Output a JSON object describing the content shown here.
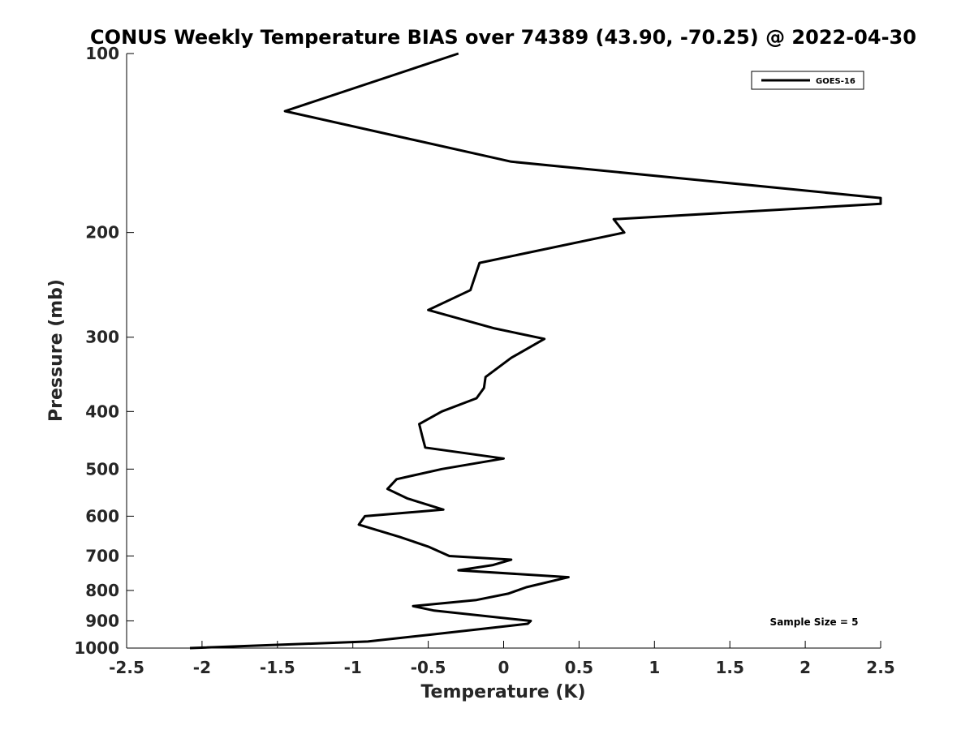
{
  "chart_data": {
    "type": "line",
    "title": "CONUS Weekly Temperature BIAS over 74389 (43.90, -70.25) @ 2022-04-30",
    "xlabel": "Temperature (K)",
    "ylabel": "Pressure (mb)",
    "xlim": [
      -2.5,
      2.5
    ],
    "ylim": [
      1000,
      100
    ],
    "y_scale": "log",
    "y_reversed": true,
    "x_ticks": [
      "-2.5",
      "-2",
      "-1.5",
      "-1",
      "-0.5",
      "0",
      "0.5",
      "1",
      "1.5",
      "2",
      "2.5"
    ],
    "y_ticks": [
      "100",
      "200",
      "300",
      "400",
      "500",
      "600",
      "700",
      "800",
      "900",
      "1000"
    ],
    "grid": false,
    "legend_position": "top-right",
    "series": [
      {
        "name": "GOES-16",
        "color": "#000000",
        "points": [
          [
            -0.3,
            100
          ],
          [
            -1.45,
            125
          ],
          [
            0.05,
            152
          ],
          [
            2.5,
            175
          ],
          [
            2.5,
            179
          ],
          [
            0.73,
            190
          ],
          [
            0.8,
            200
          ],
          [
            -0.16,
            225
          ],
          [
            -0.22,
            250
          ],
          [
            -0.5,
            270
          ],
          [
            -0.06,
            290
          ],
          [
            0.27,
            302
          ],
          [
            0.05,
            325
          ],
          [
            -0.12,
            350
          ],
          [
            -0.13,
            365
          ],
          [
            -0.18,
            380
          ],
          [
            -0.41,
            400
          ],
          [
            -0.56,
            420
          ],
          [
            -0.54,
            440
          ],
          [
            -0.52,
            460
          ],
          [
            0.0,
            480
          ],
          [
            -0.41,
            500
          ],
          [
            -0.71,
            520
          ],
          [
            -0.77,
            540
          ],
          [
            -0.64,
            560
          ],
          [
            -0.4,
            585
          ],
          [
            -0.92,
            600
          ],
          [
            -0.96,
            620
          ],
          [
            -0.69,
            650
          ],
          [
            -0.5,
            675
          ],
          [
            -0.36,
            700
          ],
          [
            0.05,
            710
          ],
          [
            -0.07,
            725
          ],
          [
            -0.3,
            740
          ],
          [
            0.43,
            760
          ],
          [
            0.15,
            790
          ],
          [
            0.03,
            810
          ],
          [
            -0.18,
            830
          ],
          [
            -0.6,
            850
          ],
          [
            -0.46,
            865
          ],
          [
            0.18,
            900
          ],
          [
            0.16,
            910
          ],
          [
            -0.09,
            925
          ],
          [
            -0.5,
            950
          ],
          [
            -0.9,
            975
          ],
          [
            -2.08,
            1000
          ]
        ]
      }
    ],
    "annotation": "Sample Size = 5"
  }
}
